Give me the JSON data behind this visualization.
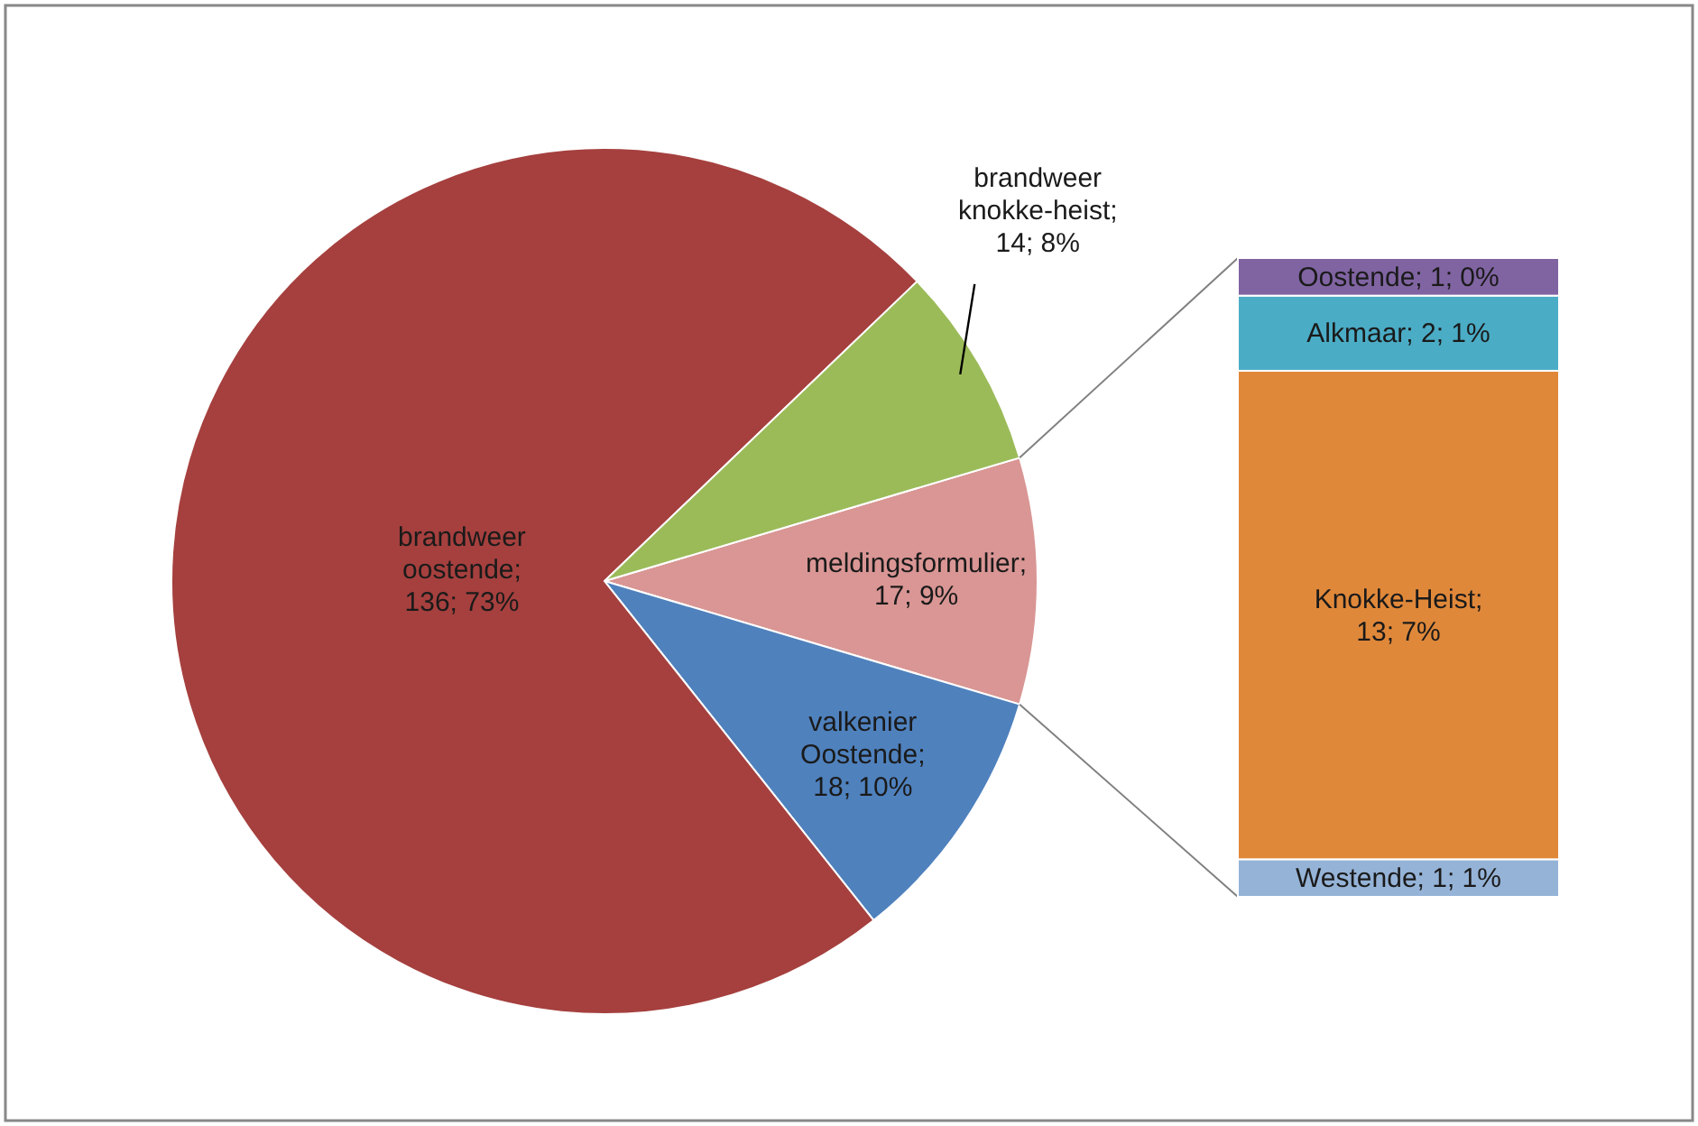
{
  "chart_data": [
    {
      "type": "pie",
      "categories": [
        "meldingsformulier",
        "valkenier Oostende",
        "brandweer oostende",
        "brandweer knokke-heist"
      ],
      "values": [
        17,
        18,
        136,
        14
      ],
      "colors": [
        "#d99694",
        "#4f81bd",
        "#a5403e",
        "#9bbb59"
      ],
      "value_labels": [
        "; 17; 9%",
        "; 18; 10%",
        "; 136; 73%",
        "; 14; 8%"
      ]
    },
    {
      "type": "bar",
      "stacked": true,
      "categories": [
        null
      ],
      "series": [
        {
          "name": "Westende;",
          "color": "#95b3d7",
          "values": [
            1
          ],
          "value_labels": [
            "1; 1%"
          ]
        },
        {
          "name": "Knokke-Heist;",
          "color": "#e0883a",
          "values": [
            13
          ],
          "value_labels": [
            "13; 7%"
          ]
        },
        {
          "name": "Alkmaar;",
          "color": "#4bacc6",
          "values": [
            2
          ],
          "value_labels": [
            "2; 1%"
          ]
        },
        {
          "name": "Oostende;",
          "color": "#8064a2",
          "values": [
            1
          ],
          "value_labels": [
            "1; 0%"
          ]
        }
      ]
    }
  ]
}
